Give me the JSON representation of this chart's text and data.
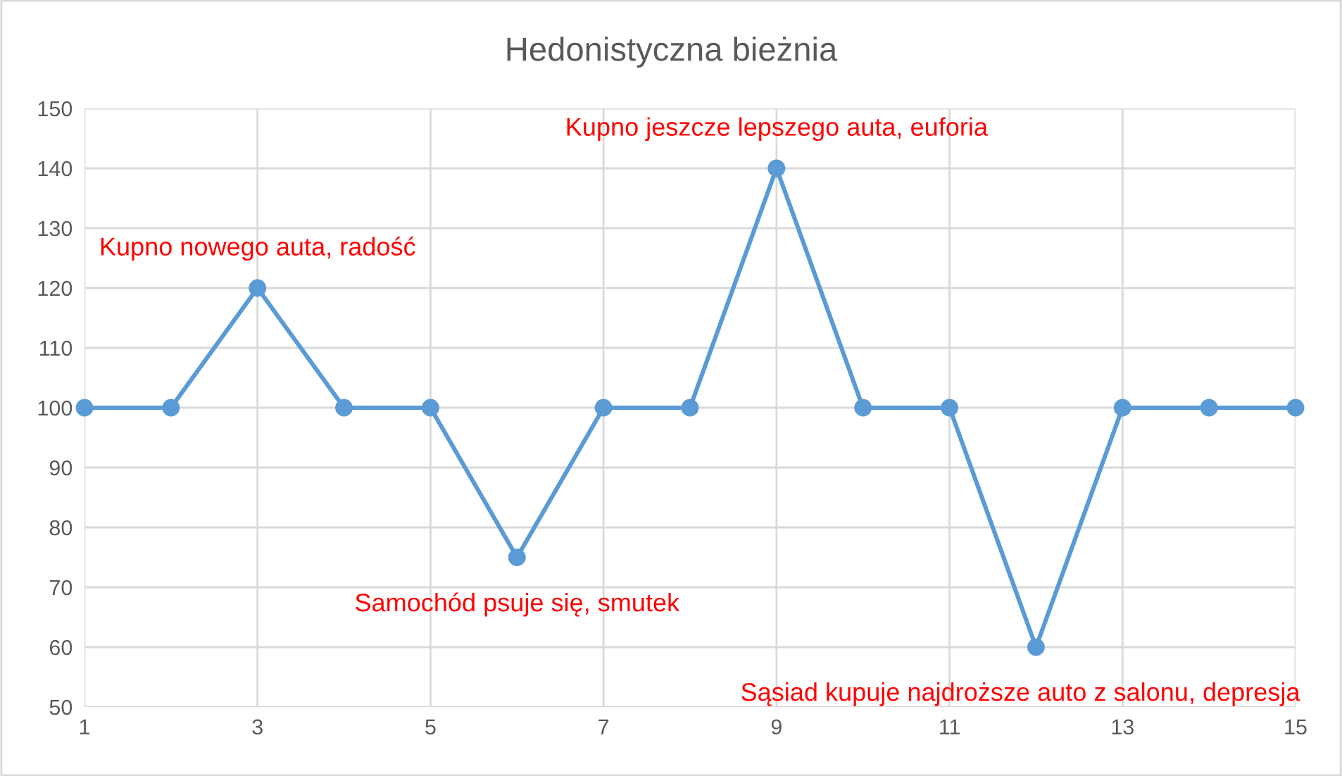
{
  "chart_data": {
    "type": "line",
    "title": "Hedonistyczna bieżnia",
    "x": [
      1,
      2,
      3,
      4,
      5,
      6,
      7,
      8,
      9,
      10,
      11,
      12,
      13,
      14,
      15
    ],
    "series": [
      {
        "color": "#5b9bd5",
        "values": [
          100,
          100,
          120,
          100,
          100,
          75,
          100,
          100,
          140,
          100,
          100,
          60,
          100,
          100,
          100
        ]
      }
    ],
    "xlim": [
      1,
      15
    ],
    "xticks": [
      1,
      3,
      5,
      7,
      9,
      11,
      13,
      15
    ],
    "ylim": [
      50,
      150
    ],
    "yticks": [
      50,
      60,
      70,
      80,
      90,
      100,
      110,
      120,
      130,
      140,
      150
    ],
    "grid": true,
    "marker": "circle",
    "line_style": "solid",
    "legend": false,
    "annotations": [
      {
        "text": "Kupno nowego auta, radość",
        "x": 3,
        "y": 120
      },
      {
        "text": "Samochód psuje się, smutek",
        "x": 6,
        "y": 75
      },
      {
        "text": "Kupno jeszcze lepszego auta, euforia",
        "x": 9,
        "y": 140
      },
      {
        "text": "Sąsiad kupuje najdroższe auto z salonu, depresja",
        "x": 12,
        "y": 60
      }
    ]
  }
}
